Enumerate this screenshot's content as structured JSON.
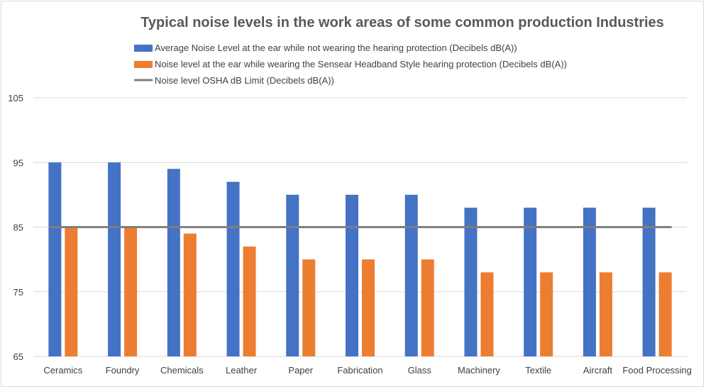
{
  "chart_data": {
    "type": "bar",
    "title": "Typical noise levels in the work areas of some common production Industries",
    "xlabel": "",
    "ylabel": "",
    "categories": [
      "Ceramics",
      "Foundry",
      "Chemicals",
      "Leather",
      "Paper",
      "Fabrication",
      "Glass",
      "Machinery",
      "Textile",
      "Aircraft",
      "Food Processing"
    ],
    "series": [
      {
        "name": "Average Noise Level at the ear while not wearing the hearing protection (Decibels dB(A))",
        "type": "bar",
        "color": "#4472c4",
        "values": [
          95,
          95,
          94,
          92,
          90,
          90,
          90,
          88,
          88,
          88,
          88
        ]
      },
      {
        "name": "Noise level at the ear while wearing the Sensear Headband Style hearing protection (Decibels dB(A))",
        "type": "bar",
        "color": "#ed7d31",
        "values": [
          85,
          85,
          84,
          82,
          80,
          80,
          80,
          78,
          78,
          78,
          78
        ]
      },
      {
        "name": "Noise level OSHA dB Limit (Decibels dB(A))",
        "type": "line",
        "color": "#7f7f7f",
        "values": [
          85,
          85,
          85,
          85,
          85,
          85,
          85,
          85,
          85,
          85,
          85
        ]
      }
    ],
    "ylim": [
      65,
      105
    ],
    "yticks": [
      65,
      75,
      85,
      95,
      105
    ],
    "grid": true,
    "legend_position": "top"
  }
}
